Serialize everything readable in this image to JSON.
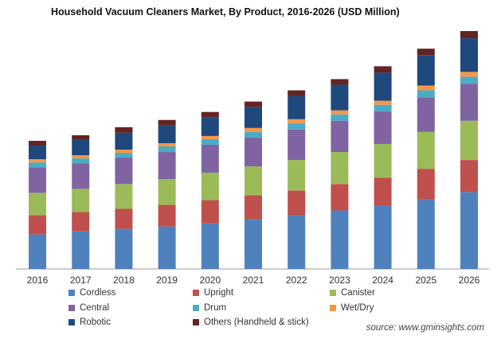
{
  "chart_data": {
    "type": "bar",
    "stacked": true,
    "title": "Household  Vacuum Cleaners Market, By Product, 2016-2026 (USD Million)",
    "categories": [
      "2016",
      "2017",
      "2018",
      "2019",
      "2020",
      "2021",
      "2022",
      "2023",
      "2024",
      "2025",
      "2026"
    ],
    "series": [
      {
        "name": "Cordless",
        "color": "#4f81bd",
        "values": [
          43,
          47,
          50,
          53,
          57,
          62,
          67,
          73,
          79,
          87,
          96
        ]
      },
      {
        "name": "Upright",
        "color": "#c0504d",
        "values": [
          24,
          24,
          25,
          27,
          29,
          30,
          31,
          33,
          35,
          38,
          40
        ]
      },
      {
        "name": "Canister",
        "color": "#9bbb59",
        "values": [
          28,
          29,
          31,
          32,
          34,
          36,
          38,
          40,
          42,
          46,
          49
        ]
      },
      {
        "name": "Central",
        "color": "#8064a2",
        "values": [
          32,
          32,
          33,
          34,
          35,
          36,
          38,
          39,
          41,
          43,
          46
        ]
      },
      {
        "name": "Drum",
        "color": "#4bacc6",
        "values": [
          6,
          6,
          6,
          7,
          7,
          7,
          8,
          8,
          8,
          9,
          9
        ]
      },
      {
        "name": "Wet/Dry",
        "color": "#f79646",
        "values": [
          4,
          4,
          4,
          4,
          4,
          5,
          5,
          5,
          5,
          6,
          6
        ]
      },
      {
        "name": "Robotic",
        "color": "#1f497d",
        "values": [
          17,
          19,
          21,
          22,
          23,
          26,
          29,
          32,
          35,
          38,
          42
        ]
      },
      {
        "name": "Others (Handheld & stick)",
        "color": "#632423",
        "values": [
          6,
          6,
          7,
          7,
          7,
          7,
          7,
          7,
          8,
          8,
          9
        ]
      }
    ],
    "ylim": [
      0,
      300
    ],
    "xlabel": "",
    "ylabel": "",
    "grid": false,
    "legend_position": "bottom"
  },
  "source_note": "source: www.gminsights.com"
}
